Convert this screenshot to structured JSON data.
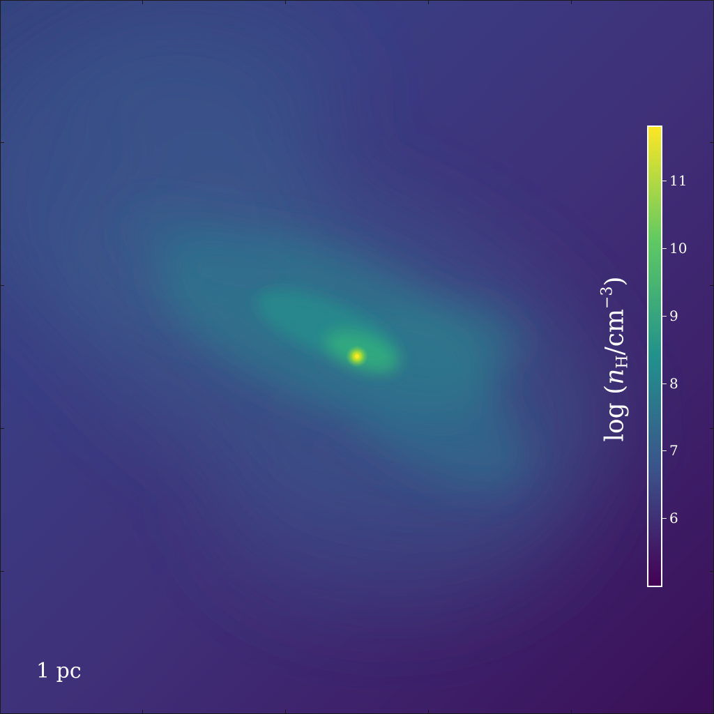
{
  "scale_bar": {
    "label": "1 pc"
  },
  "colorbar": {
    "title": {
      "prefix": "log",
      "symbol": "n",
      "subscript": "H",
      "unit": "/cm",
      "exponent": "−3"
    },
    "min": 5.0,
    "max": 11.8,
    "ticks": [
      "6",
      "7",
      "8",
      "9",
      "10",
      "11"
    ],
    "colormap": [
      "#440154",
      "#3b528b",
      "#21918c",
      "#5ec962",
      "#fde725"
    ]
  }
}
